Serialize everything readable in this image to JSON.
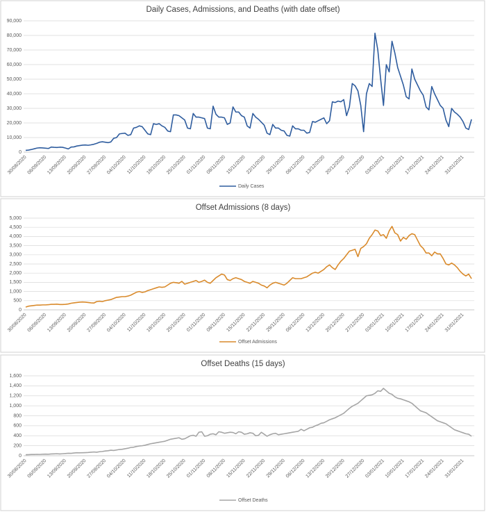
{
  "chart_data": [
    {
      "type": "line",
      "title": "Daily Cases, Admissions, and Deaths (with date offset)",
      "categories": [
        "30/08/2020",
        null,
        null,
        null,
        null,
        null,
        null,
        "06/09/2020",
        null,
        null,
        null,
        null,
        null,
        null,
        "13/09/2020",
        null,
        null,
        null,
        null,
        null,
        null,
        "20/09/2020",
        null,
        null,
        null,
        null,
        null,
        null,
        "27/09/2020",
        null,
        null,
        null,
        null,
        null,
        null,
        "04/10/2020",
        null,
        null,
        null,
        null,
        null,
        null,
        "11/10/2020",
        null,
        null,
        null,
        null,
        null,
        null,
        "18/10/2020",
        null,
        null,
        null,
        null,
        null,
        null,
        "25/10/2020",
        null,
        null,
        null,
        null,
        null,
        null,
        "01/11/2020",
        null,
        null,
        null,
        null,
        null,
        null,
        "08/11/2020",
        null,
        null,
        null,
        null,
        null,
        null,
        "15/11/2020",
        null,
        null,
        null,
        null,
        null,
        null,
        "22/11/2020",
        null,
        null,
        null,
        null,
        null,
        null,
        "29/11/2020",
        null,
        null,
        null,
        null,
        null,
        null,
        "06/12/2020",
        null,
        null,
        null,
        null,
        null,
        null,
        "13/12/2020",
        null,
        null,
        null,
        null,
        null,
        null,
        "20/12/2020",
        null,
        null,
        null,
        null,
        null,
        null,
        "27/12/2020",
        null,
        null,
        null,
        null,
        null,
        null,
        "03/01/2021",
        null,
        null,
        null,
        null,
        null,
        null,
        "10/01/2021",
        null,
        null,
        null,
        null,
        null,
        null,
        "17/01/2021",
        null,
        null,
        null,
        null,
        null,
        null,
        "24/01/2021",
        null,
        null,
        null,
        null,
        null,
        null,
        "31/01/2021",
        null,
        null,
        null
      ],
      "series": [
        {
          "name": "Daily Cases",
          "color": "#2e5c9e",
          "values": [
            1200,
            1400,
            1800,
            2300,
            2800,
            3000,
            2900,
            2700,
            2500,
            3500,
            3300,
            3200,
            3400,
            3300,
            2800,
            2200,
            3500,
            3600,
            4200,
            4500,
            4800,
            4900,
            4700,
            5000,
            5400,
            6000,
            6800,
            7100,
            6800,
            6500,
            7000,
            9500,
            10000,
            12500,
            12800,
            13000,
            11500,
            12000,
            16500,
            17000,
            18000,
            17500,
            15000,
            12500,
            12000,
            19500,
            19000,
            19500,
            18000,
            17000,
            14500,
            14000,
            25500,
            25500,
            25000,
            23500,
            22000,
            16500,
            16000,
            26500,
            24000,
            24000,
            23500,
            23000,
            16500,
            16000,
            31500,
            26000,
            24000,
            24000,
            23500,
            19000,
            20000,
            31000,
            27500,
            27500,
            25000,
            24000,
            18000,
            16500,
            26500,
            24000,
            22500,
            20500,
            18500,
            13000,
            12000,
            19000,
            16500,
            16500,
            15000,
            14500,
            11500,
            11000,
            18000,
            16000,
            16000,
            15000,
            15000,
            13000,
            13500,
            21000,
            20500,
            21500,
            22500,
            23500,
            19500,
            21500,
            34500,
            34000,
            35000,
            34500,
            36000,
            25000,
            31000,
            47000,
            45500,
            42000,
            32000,
            14000,
            40000,
            47000,
            45000,
            81500,
            70000,
            50000,
            32000,
            60000,
            55000,
            76000,
            68000,
            58000,
            52000,
            46000,
            38000,
            36500,
            57000,
            50000,
            46000,
            42000,
            39000,
            31000,
            29000,
            45000,
            40000,
            36000,
            32000,
            30000,
            22000,
            17500,
            30000,
            27500,
            26000,
            24000,
            21000,
            16500,
            15500,
            22500
          ]
        }
      ],
      "ylim": [
        0,
        90000
      ],
      "yticks": [
        0,
        {
          "value": 10000,
          "label": "10,000"
        },
        {
          "value": 20000,
          "label": "20,000"
        },
        {
          "value": 30000,
          "label": "30,000"
        },
        {
          "value": 40000,
          "label": "40,000"
        },
        {
          "value": 50000,
          "label": "50,000"
        },
        {
          "value": 60000,
          "label": "60,000"
        },
        {
          "value": 70000,
          "label": "70,000"
        },
        {
          "value": 80000,
          "label": "80,000"
        },
        {
          "value": 90000,
          "label": "90,000"
        }
      ],
      "grid": true,
      "legend": "bottom"
    },
    {
      "type": "line",
      "title": "Offset Admissions (8 days)",
      "categories": [
        "30/08/2020",
        null,
        null,
        null,
        null,
        null,
        null,
        "06/09/2020",
        null,
        null,
        null,
        null,
        null,
        null,
        "13/09/2020",
        null,
        null,
        null,
        null,
        null,
        null,
        "20/09/2020",
        null,
        null,
        null,
        null,
        null,
        null,
        "27/09/2020",
        null,
        null,
        null,
        null,
        null,
        null,
        "04/10/2020",
        null,
        null,
        null,
        null,
        null,
        null,
        "11/10/2020",
        null,
        null,
        null,
        null,
        null,
        null,
        "18/10/2020",
        null,
        null,
        null,
        null,
        null,
        null,
        "25/10/2020",
        null,
        null,
        null,
        null,
        null,
        null,
        "01/11/2020",
        null,
        null,
        null,
        null,
        null,
        null,
        "08/11/2020",
        null,
        null,
        null,
        null,
        null,
        null,
        "15/11/2020",
        null,
        null,
        null,
        null,
        null,
        null,
        "22/11/2020",
        null,
        null,
        null,
        null,
        null,
        null,
        "29/11/2020",
        null,
        null,
        null,
        null,
        null,
        null,
        "06/12/2020",
        null,
        null,
        null,
        null,
        null,
        null,
        "13/12/2020",
        null,
        null,
        null,
        null,
        null,
        null,
        "20/12/2020",
        null,
        null,
        null,
        null,
        null,
        null,
        "27/12/2020",
        null,
        null,
        null,
        null,
        null,
        null,
        "03/01/2021",
        null,
        null,
        null,
        null,
        null,
        null,
        "10/01/2021",
        null,
        null,
        null,
        null,
        null,
        null,
        "17/01/2021",
        null,
        null,
        null,
        null,
        null,
        null,
        "24/01/2021",
        null,
        null,
        null,
        null,
        null,
        null,
        "31/01/2021",
        null,
        null,
        null
      ],
      "series": [
        {
          "name": "Offset Admissions",
          "color": "#d98a2b",
          "values": [
            150,
            200,
            220,
            240,
            260,
            260,
            270,
            270,
            280,
            300,
            300,
            310,
            290,
            290,
            300,
            320,
            360,
            380,
            400,
            420,
            430,
            420,
            400,
            380,
            370,
            450,
            470,
            450,
            500,
            530,
            560,
            620,
            680,
            700,
            720,
            720,
            750,
            800,
            880,
            960,
            1000,
            950,
            980,
            1050,
            1100,
            1150,
            1200,
            1250,
            1230,
            1250,
            1350,
            1450,
            1500,
            1480,
            1450,
            1550,
            1400,
            1450,
            1500,
            1550,
            1600,
            1500,
            1550,
            1620,
            1500,
            1450,
            1600,
            1750,
            1850,
            1950,
            1900,
            1650,
            1600,
            1700,
            1750,
            1700,
            1650,
            1550,
            1500,
            1450,
            1550,
            1500,
            1450,
            1350,
            1300,
            1200,
            1350,
            1450,
            1500,
            1450,
            1400,
            1350,
            1450,
            1600,
            1750,
            1700,
            1700,
            1700,
            1750,
            1800,
            1900,
            2000,
            2050,
            2000,
            2100,
            2200,
            2350,
            2450,
            2300,
            2200,
            2450,
            2650,
            2800,
            3000,
            3200,
            3250,
            3300,
            2900,
            3350,
            3450,
            3600,
            3900,
            4100,
            4350,
            4300,
            4050,
            4100,
            3900,
            4300,
            4550,
            4200,
            4100,
            3750,
            3950,
            3850,
            4050,
            4150,
            4100,
            3800,
            3500,
            3350,
            3100,
            3100,
            2950,
            3150,
            3050,
            3050,
            2800,
            2500,
            2450,
            2550,
            2450,
            2300,
            2100,
            1950,
            1850,
            1950,
            1700
          ]
        }
      ],
      "ylim": [
        0,
        5000
      ],
      "yticks": [
        0,
        500,
        {
          "value": 1000,
          "label": "1,000"
        },
        {
          "value": 1500,
          "label": "1,500"
        },
        {
          "value": 2000,
          "label": "2,000"
        },
        {
          "value": 2500,
          "label": "2,500"
        },
        {
          "value": 3000,
          "label": "3,000"
        },
        {
          "value": 3500,
          "label": "3,500"
        },
        {
          "value": 4000,
          "label": "4,000"
        },
        {
          "value": 4500,
          "label": "4,500"
        },
        {
          "value": 5000,
          "label": "5,000"
        }
      ],
      "grid": true,
      "legend": "bottom"
    },
    {
      "type": "line",
      "title": "Offset Deaths (15 days)",
      "categories": [
        "30/08/2020",
        null,
        null,
        null,
        null,
        null,
        null,
        "06/09/2020",
        null,
        null,
        null,
        null,
        null,
        null,
        "13/09/2020",
        null,
        null,
        null,
        null,
        null,
        null,
        "20/09/2020",
        null,
        null,
        null,
        null,
        null,
        null,
        "27/09/2020",
        null,
        null,
        null,
        null,
        null,
        null,
        "04/10/2020",
        null,
        null,
        null,
        null,
        null,
        null,
        "11/10/2020",
        null,
        null,
        null,
        null,
        null,
        null,
        "18/10/2020",
        null,
        null,
        null,
        null,
        null,
        null,
        "25/10/2020",
        null,
        null,
        null,
        null,
        null,
        null,
        "01/11/2020",
        null,
        null,
        null,
        null,
        null,
        null,
        "08/11/2020",
        null,
        null,
        null,
        null,
        null,
        null,
        "15/11/2020",
        null,
        null,
        null,
        null,
        null,
        null,
        "22/11/2020",
        null,
        null,
        null,
        null,
        null,
        null,
        "29/11/2020",
        null,
        null,
        null,
        null,
        null,
        null,
        "06/12/2020",
        null,
        null,
        null,
        null,
        null,
        null,
        "13/12/2020",
        null,
        null,
        null,
        null,
        null,
        null,
        "20/12/2020",
        null,
        null,
        null,
        null,
        null,
        null,
        "27/12/2020",
        null,
        null,
        null,
        null,
        null,
        null,
        "03/01/2021",
        null,
        null,
        null,
        null,
        null,
        null,
        "10/01/2021",
        null,
        null,
        null,
        null,
        null,
        null,
        "17/01/2021",
        null,
        null,
        null,
        null,
        null,
        null,
        "24/01/2021",
        null,
        null,
        null,
        null,
        null,
        null,
        "31/01/2021",
        null,
        null,
        null
      ],
      "series": [
        {
          "name": "Offset Deaths",
          "color": "#a5a5a5",
          "values": [
            20,
            22,
            25,
            25,
            28,
            26,
            30,
            32,
            30,
            35,
            38,
            40,
            35,
            40,
            45,
            50,
            48,
            55,
            60,
            58,
            60,
            62,
            65,
            70,
            75,
            70,
            80,
            85,
            95,
            100,
            110,
            105,
            115,
            125,
            130,
            140,
            150,
            165,
            170,
            185,
            195,
            200,
            210,
            225,
            240,
            250,
            260,
            270,
            280,
            290,
            310,
            330,
            340,
            350,
            360,
            330,
            340,
            370,
            400,
            410,
            390,
            470,
            480,
            390,
            400,
            430,
            440,
            420,
            480,
            470,
            450,
            460,
            470,
            465,
            440,
            480,
            470,
            430,
            440,
            460,
            450,
            400,
            410,
            470,
            430,
            390,
            420,
            440,
            450,
            420,
            430,
            440,
            450,
            460,
            470,
            480,
            490,
            530,
            500,
            530,
            560,
            570,
            600,
            620,
            650,
            660,
            690,
            720,
            740,
            760,
            790,
            820,
            850,
            900,
            950,
            990,
            1020,
            1050,
            1100,
            1150,
            1200,
            1210,
            1220,
            1250,
            1300,
            1290,
            1350,
            1300,
            1250,
            1230,
            1180,
            1150,
            1140,
            1120,
            1100,
            1080,
            1050,
            1000,
            950,
            900,
            880,
            860,
            820,
            780,
            740,
            700,
            680,
            660,
            640,
            600,
            560,
            520,
            500,
            480,
            460,
            440,
            430,
            390
          ]
        }
      ],
      "ylim": [
        0,
        1600
      ],
      "yticks": [
        0,
        200,
        400,
        600,
        800,
        {
          "value": 1000,
          "label": "1,000"
        },
        {
          "value": 1200,
          "label": "1,200"
        },
        {
          "value": 1400,
          "label": "1,400"
        },
        {
          "value": 1600,
          "label": "1,600"
        }
      ],
      "grid": true,
      "legend": "bottom"
    }
  ]
}
